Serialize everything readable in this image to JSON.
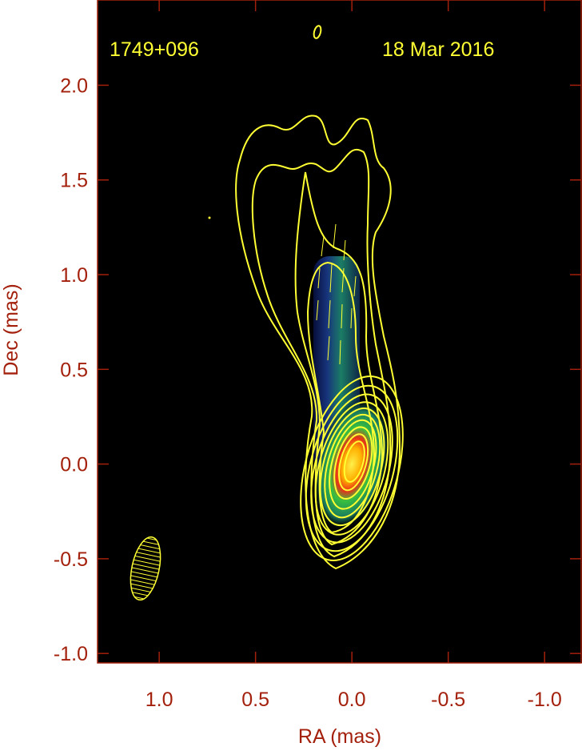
{
  "chart_data": {
    "type": "contour",
    "source": "1749+096",
    "date": "18 Mar 2016",
    "x_label": "RA (mas)",
    "y_label": "Dec (mas)",
    "xlim": [
      1.32,
      -1.19
    ],
    "ylim": [
      -1.05,
      2.45
    ],
    "xticks": [
      {
        "value": 1,
        "label": "1.0"
      },
      0.5,
      {
        "value": 0,
        "label": "0.0"
      },
      -0.5,
      {
        "value": -1,
        "label": "-1.0"
      }
    ],
    "yticks": [
      {
        "value": -1,
        "label": "-1.0"
      },
      -0.5,
      {
        "value": 0,
        "label": "0.0"
      },
      0.5,
      {
        "value": 1,
        "label": "1.0"
      },
      1.5,
      {
        "value": 2,
        "label": "2.0"
      }
    ],
    "label_color": "#a3200c",
    "annotation_color": "#ffff33"
  }
}
